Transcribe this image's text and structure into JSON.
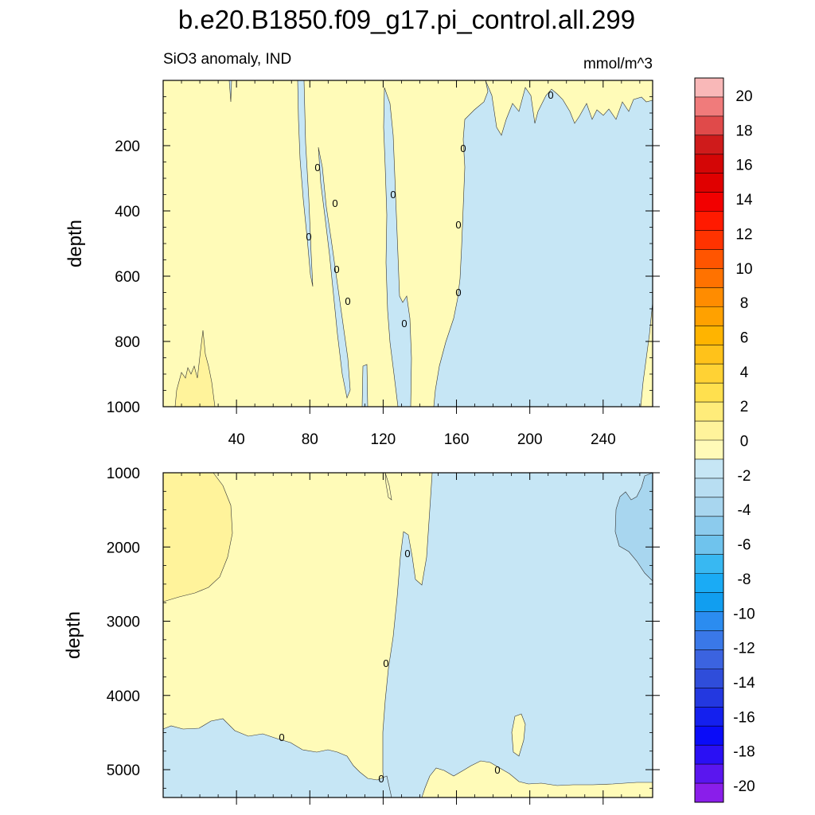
{
  "chart_data": {
    "type": "contour",
    "title": "b.e20.B1850.f09_g17.pi_control.all.299",
    "subtitle_left": "SiO3 anomaly, IND",
    "subtitle_right": "mmol/m^3",
    "colorbar": {
      "levels": [
        -20,
        -18,
        -16,
        -14,
        -12,
        -10,
        -8,
        -6,
        -4,
        -2,
        0,
        2,
        4,
        6,
        8,
        10,
        12,
        14,
        16,
        18,
        20
      ],
      "labels": [
        "20",
        "18",
        "16",
        "14",
        "12",
        "10",
        "8",
        "6",
        "4",
        "2",
        "0",
        "-2",
        "-4",
        "-6",
        "-8",
        "-10",
        "-12",
        "-14",
        "-16",
        "-18",
        "-20"
      ],
      "colors_top_to_bottom": [
        "#f9b8b8",
        "#f07b7b",
        "#e04a4a",
        "#cf1b1b",
        "#d40606",
        "#e00000",
        "#f20000",
        "#ff1a00",
        "#ff3300",
        "#ff5500",
        "#ff7200",
        "#ff8c00",
        "#ffa100",
        "#ffb400",
        "#ffc21a",
        "#ffd234",
        "#ffe04e",
        "#ffec7a",
        "#fff39b",
        "#fffab8",
        "#c6e6f5",
        "#b8def2",
        "#a8d6ef",
        "#8ccbed",
        "#6fc3ed",
        "#38b8f2",
        "#1aabf5",
        "#119ef0",
        "#2b8cf0",
        "#3a78e8",
        "#3b63e0",
        "#2f4dda",
        "#2338e0",
        "#1420ee",
        "#0a0cf8",
        "#2a10f4",
        "#5a16ef",
        "#8a1eea"
      ]
    },
    "panels": [
      {
        "name": "upper",
        "ylabel": "depth",
        "x_tick_labels": [
          "40",
          "80",
          "120",
          "160",
          "200",
          "240"
        ],
        "x_ticks": [
          40,
          80,
          120,
          160,
          200,
          240
        ],
        "xlim": [
          0,
          267
        ],
        "y_tick_labels": [
          "200",
          "400",
          "600",
          "800",
          "1000"
        ],
        "y_ticks": [
          200,
          400,
          600,
          800,
          1000
        ],
        "ylim": [
          0,
          1000
        ],
        "y_inverted": true,
        "zero_contour_labels": [
          "0",
          "0",
          "0",
          "0",
          "0",
          "0",
          "0",
          "0",
          "0",
          "0",
          "0"
        ]
      },
      {
        "name": "lower",
        "ylabel": "depth",
        "x_tick_labels": [],
        "x_ticks": [
          40,
          80,
          120,
          160,
          200,
          240
        ],
        "xlim": [
          0,
          267
        ],
        "y_tick_labels": [
          "1000",
          "2000",
          "3000",
          "4000",
          "5000"
        ],
        "y_ticks": [
          1000,
          2000,
          3000,
          4000,
          5000
        ],
        "ylim": [
          1000,
          5375
        ],
        "y_inverted": true,
        "zero_contour_labels": [
          "0",
          "0",
          "0",
          "0",
          "0"
        ]
      }
    ],
    "fill_colors": {
      "positive_0_2": "#fffbb8",
      "positive_2_4": "#fff59b",
      "negative_0_2": "#c6e6f5",
      "negative_2_4": "#a8d6ef"
    }
  }
}
